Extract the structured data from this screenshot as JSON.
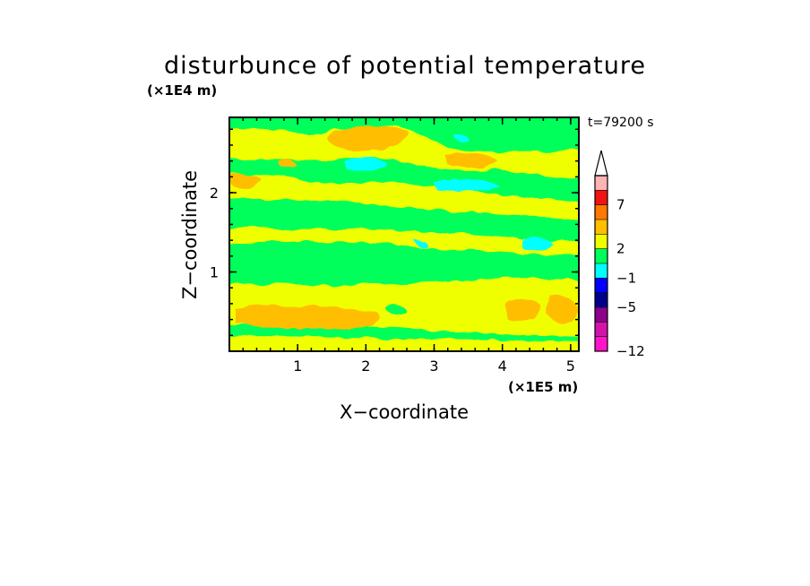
{
  "chart_data": {
    "type": "heatmap",
    "title": "disturbunce of potential temperature",
    "time_label": "t=79200 s",
    "xlabel": "X−coordinate",
    "ylabel": "Z−coordinate",
    "x_scale_label": "(×1E5 m)",
    "y_scale_label": "(×1E4 m)",
    "xlim": [
      0,
      5.12
    ],
    "ylim": [
      0,
      2.95
    ],
    "x_ticks": [
      "1",
      "2",
      "3",
      "4",
      "5"
    ],
    "y_ticks": [
      "1",
      "2"
    ],
    "colorbar": {
      "labels": [
        "7",
        "2",
        "−1",
        "−5",
        "−12"
      ],
      "colors": [
        "#ffb4b4",
        "#f01414",
        "#ff7800",
        "#ffbe00",
        "#f0ff00",
        "#00ff5a",
        "#00ffff",
        "#0000ff",
        "#00008c",
        "#8c008c",
        "#d214aa",
        "#ff14c8"
      ],
      "extend": "max"
    },
    "colors": {
      "green": "#00ff5a",
      "yellow": "#f0ff00",
      "orange": "#ffbe00",
      "cyan": "#00ffff"
    }
  }
}
